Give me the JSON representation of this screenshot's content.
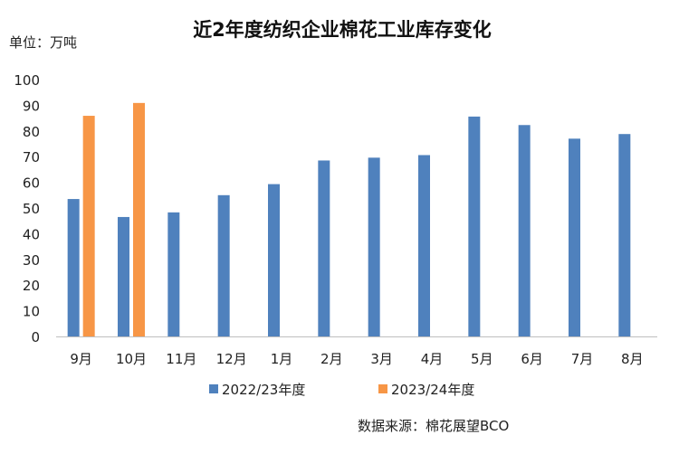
{
  "chart_data": {
    "type": "bar",
    "title": "近2年度纺织企业棉花工业库存变化",
    "unit_label": "单位：万吨",
    "source": "数据来源：棉花展望BCO",
    "categories": [
      "9月",
      "10月",
      "11月",
      "12月",
      "1月",
      "2月",
      "3月",
      "4月",
      "5月",
      "6月",
      "7月",
      "8月"
    ],
    "series": [
      {
        "name": "2022/23年度",
        "color": "#4f81bd",
        "values": [
          53.5,
          46.5,
          48.3,
          55,
          59.3,
          68.5,
          69.6,
          70.6,
          85.6,
          82.3,
          77,
          78.8
        ]
      },
      {
        "name": "2023/24年度",
        "color": "#f79646",
        "values": [
          85.9,
          90.9,
          null,
          null,
          null,
          null,
          null,
          null,
          null,
          null,
          null,
          null
        ]
      }
    ],
    "ylim": [
      0,
      100
    ],
    "yticks": [
      0,
      10,
      20,
      30,
      40,
      50,
      60,
      70,
      80,
      90,
      100
    ],
    "grid": false,
    "legend_position": "bottom"
  }
}
